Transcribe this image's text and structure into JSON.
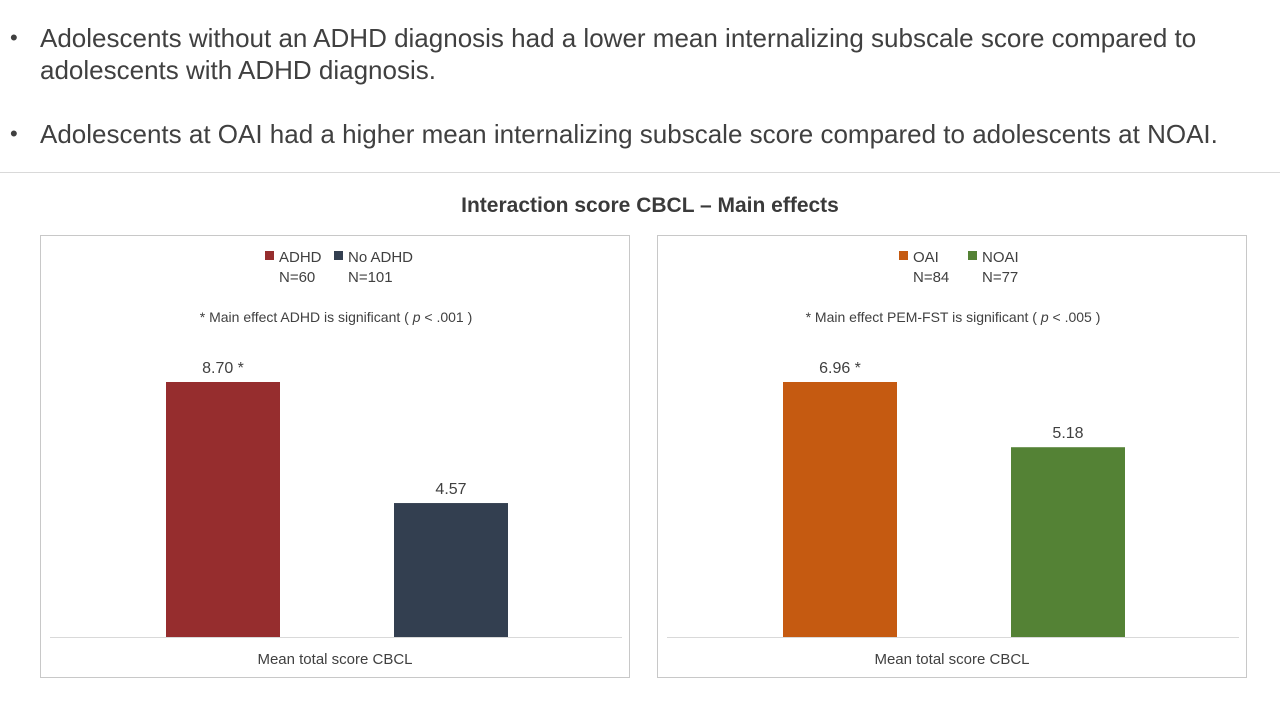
{
  "bullets": [
    {
      "line1": "Adolescents without an ADHD diagnosis had a lower mean internalizing subscale score compared to",
      "line2": "adolescents with ADHD diagnosis."
    },
    {
      "line1": "Adolescents at OAI had a higher mean internalizing subscale score compared to adolescents at NOAI.",
      "line2": ""
    }
  ],
  "bullet_symbol": "•",
  "chart_title": "Interaction score CBCL – Main effects",
  "chart_data": [
    {
      "type": "bar",
      "title": "",
      "xlabel": "Mean total score CBCL",
      "ylabel": "",
      "ylim": [
        0,
        10
      ],
      "grid": false,
      "legend_position": "top-center",
      "note": {
        "prefix": "* Main effect ADHD is significant  ( ",
        "italic": "p",
        "suffix": " < .001 )"
      },
      "series": [
        {
          "name": "ADHD",
          "n_label": "N=60",
          "value": 8.7,
          "label": "8.70 *",
          "color": "#962D2E"
        },
        {
          "name": "No ADHD",
          "n_label": "N=101",
          "value": 4.57,
          "label": "4.57",
          "color": "#333F50"
        }
      ]
    },
    {
      "type": "bar",
      "title": "",
      "xlabel": "Mean total score CBCL",
      "ylabel": "",
      "ylim": [
        0,
        10
      ],
      "grid": false,
      "legend_position": "top-center",
      "note": {
        "prefix": "* Main effect PEM-FST is significant  ( ",
        "italic": "p",
        "suffix": " < .005 )"
      },
      "series": [
        {
          "name": "OAI",
          "n_label": "N=84",
          "value": 6.96,
          "label": "6.96 *",
          "color": "#C55A11"
        },
        {
          "name": "NOAI",
          "n_label": "N=77",
          "value": 5.18,
          "label": "5.18",
          "color": "#548235"
        }
      ]
    }
  ]
}
